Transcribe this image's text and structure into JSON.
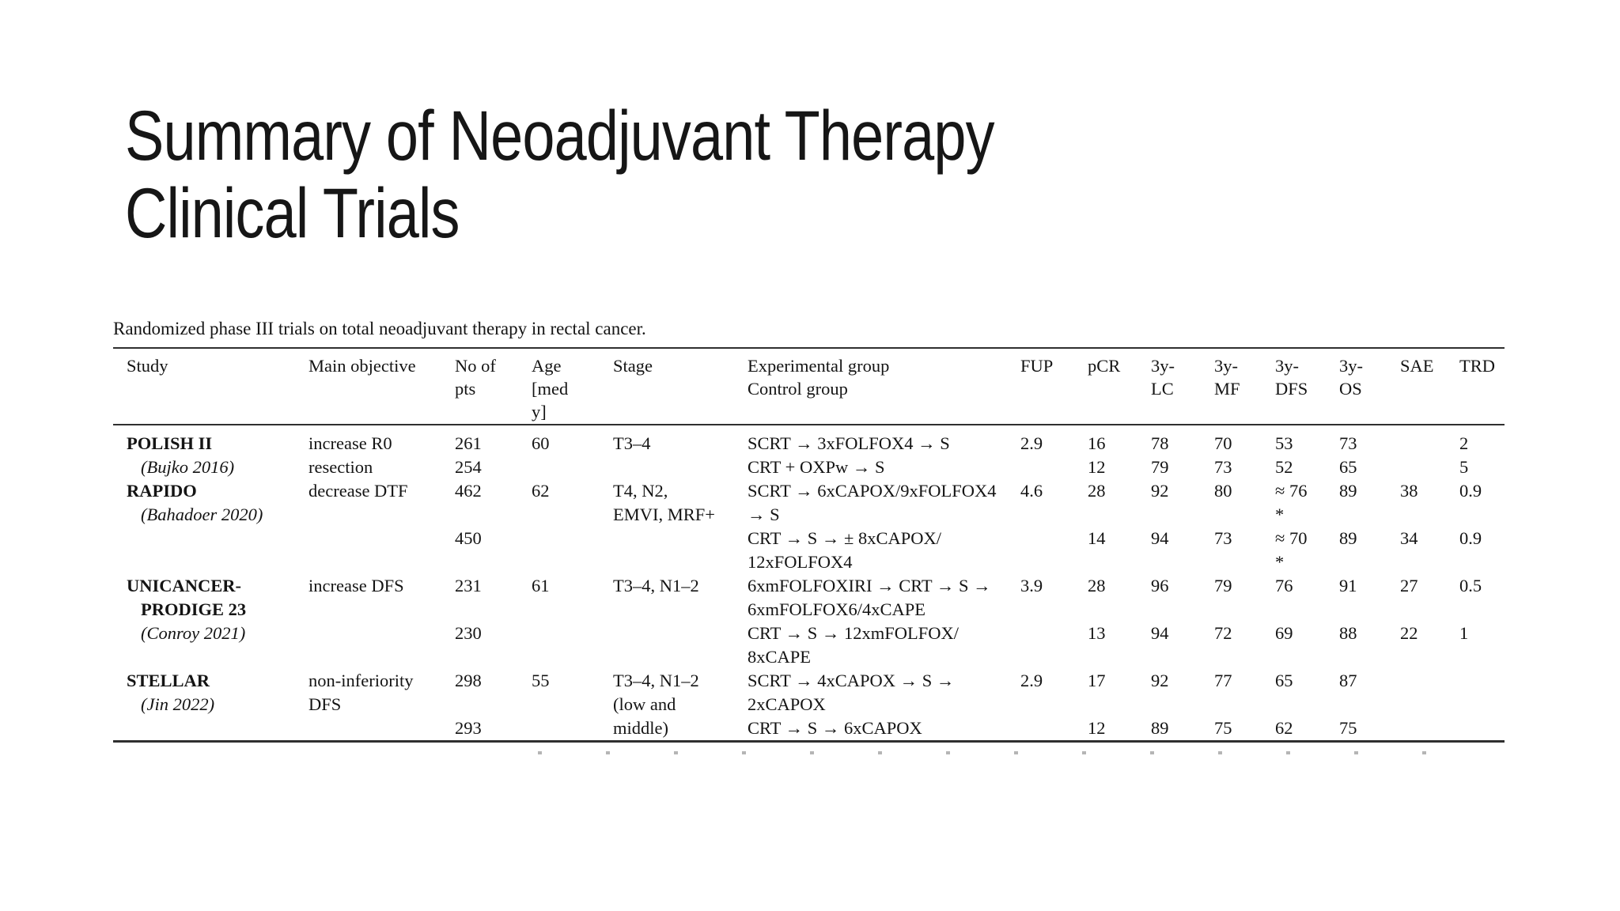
{
  "slide": {
    "title": "Summary of Neoadjuvant Therapy Clinical Trials",
    "background_color": "#ffffff",
    "text_color": "#141414",
    "rule_color": "#2f2f2f"
  },
  "table": {
    "caption": "Randomized phase III trials on total neoadjuvant therapy in rectal cancer.",
    "columns": [
      "Study",
      "Main objective",
      "No of\npts",
      "Age\n[med\ny]",
      "Stage",
      "Experimental group\nControl group",
      "FUP",
      "pCR",
      "3y-\nLC",
      "3y-\nMF",
      "3y-\nDFS",
      "3y-\nOS",
      "SAE",
      "TRD"
    ],
    "rows": [
      {
        "style": "name",
        "cells": [
          "POLISH II",
          "increase R0",
          "261",
          "60",
          "T3–4",
          "SCRT → 3xFOLFOX4 → S",
          "2.9",
          "16",
          "78",
          "70",
          "53",
          "73",
          "",
          "2"
        ]
      },
      {
        "style": "cite",
        "cells": [
          "(Bujko 2016)",
          "resection",
          "254",
          "",
          "",
          "CRT + OXPw → S",
          "",
          "12",
          "79",
          "73",
          "52",
          "65",
          "",
          "5"
        ]
      },
      {
        "style": "name",
        "cells": [
          "RAPIDO",
          "decrease DTF",
          "462",
          "62",
          "T4, N2,",
          "SCRT → 6xCAPOX/9xFOLFOX4",
          "4.6",
          "28",
          "92",
          "80",
          "≈ 76",
          "89",
          "38",
          "0.9"
        ]
      },
      {
        "style": "cite",
        "cells": [
          "(Bahadoer 2020)",
          "",
          "",
          "",
          "EMVI, MRF+",
          "→ S",
          "",
          "",
          "",
          "",
          "*",
          "",
          "",
          ""
        ]
      },
      {
        "style": "",
        "cells": [
          "",
          "",
          "450",
          "",
          "",
          "CRT → S → ± 8xCAPOX/",
          "",
          "14",
          "94",
          "73",
          "≈ 70",
          "89",
          "34",
          "0.9"
        ]
      },
      {
        "style": "",
        "cells": [
          "",
          "",
          "",
          "",
          "",
          "12xFOLFOX4",
          "",
          "",
          "",
          "",
          "*",
          "",
          "",
          ""
        ]
      },
      {
        "style": "name",
        "cells": [
          "UNICANCER-",
          "increase DFS",
          "231",
          "61",
          "T3–4, N1–2",
          "6xmFOLFOXIRI → CRT → S →",
          "3.9",
          "28",
          "96",
          "79",
          "76",
          "91",
          "27",
          "0.5"
        ]
      },
      {
        "style": "name2",
        "cells": [
          "PRODIGE 23",
          "",
          "",
          "",
          "",
          "6xmFOLFOX6/4xCAPE",
          "",
          "",
          "",
          "",
          "",
          "",
          "",
          ""
        ]
      },
      {
        "style": "cite",
        "cells": [
          "(Conroy 2021)",
          "",
          "230",
          "",
          "",
          "CRT → S → 12xmFOLFOX/",
          "",
          "13",
          "94",
          "72",
          "69",
          "88",
          "22",
          "1"
        ]
      },
      {
        "style": "",
        "cells": [
          "",
          "",
          "",
          "",
          "",
          "8xCAPE",
          "",
          "",
          "",
          "",
          "",
          "",
          "",
          ""
        ]
      },
      {
        "style": "name",
        "cells": [
          "STELLAR",
          "non-inferiority",
          "298",
          "55",
          "T3–4, N1–2",
          "SCRT → 4xCAPOX → S →",
          "2.9",
          "17",
          "92",
          "77",
          "65",
          "87",
          "",
          ""
        ]
      },
      {
        "style": "cite",
        "cells": [
          "(Jin 2022)",
          "DFS",
          "",
          "",
          "(low and",
          "2xCAPOX",
          "",
          "",
          "",
          "",
          "",
          "",
          "",
          ""
        ]
      },
      {
        "style": "",
        "cells": [
          "",
          "",
          "293",
          "",
          "middle)",
          "CRT → S → 6xCAPOX",
          "",
          "12",
          "89",
          "75",
          "62",
          "75",
          "",
          ""
        ]
      }
    ]
  }
}
